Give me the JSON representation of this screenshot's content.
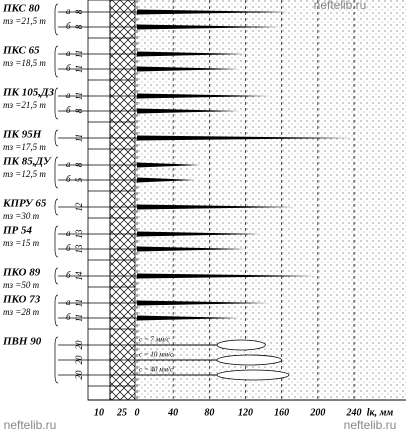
{
  "chart_data": {
    "type": "spike",
    "xlim": [
      0,
      240
    ],
    "xticks": [
      0,
      40,
      80,
      120,
      160,
      200,
      240
    ],
    "xlabel": "lк, мм",
    "left_columns": [
      10,
      25
    ],
    "watermark": [
      "neftelib.ru",
      "neftelib.ru"
    ],
    "groups": [
      {
        "name": "ПКС 80",
        "mass": "mз =21,5 т",
        "rows": [
          {
            "tag": "а",
            "label": "8",
            "value": 168
          },
          {
            "tag": "б",
            "label": "8",
            "value": 158
          }
        ]
      },
      {
        "name": "ПКС 65",
        "mass": "mз =18,5 т",
        "rows": [
          {
            "tag": "а",
            "label": "11",
            "value": 120
          },
          {
            "tag": "б",
            "label": "11",
            "value": 113
          }
        ]
      },
      {
        "name": "ПК 105,ДЗ",
        "mass": "mз =21,5 т",
        "rows": [
          {
            "tag": "а",
            "label": "11",
            "value": 147
          },
          {
            "tag": "б",
            "label": "8",
            "value": 113
          }
        ]
      },
      {
        "name": "ПК 95Н",
        "mass": "mз =17,5 т",
        "rows": [
          {
            "label": "11",
            "value": 238
          }
        ]
      },
      {
        "name": "ПК 85,ДУ",
        "mass": "mз =12,5 т",
        "rows": [
          {
            "tag": "а",
            "label": "8",
            "value": 70
          },
          {
            "tag": "б",
            "label": "5",
            "value": 64
          }
        ]
      },
      {
        "name": "КПРУ 65",
        "mass": "mз =30 т",
        "rows": [
          {
            "label": "12",
            "value": 175
          }
        ]
      },
      {
        "name": "ПР 54",
        "mass": "mз =15 т",
        "rows": [
          {
            "tag": "а",
            "label": "13",
            "value": 136
          },
          {
            "tag": "б",
            "label": "13",
            "value": 120
          }
        ]
      },
      {
        "name": "ПКО 89",
        "mass": "mз =50 т",
        "rows": [
          {
            "tag": "б",
            "label": "14",
            "value": 197
          }
        ]
      },
      {
        "name": "ПКО 73",
        "mass": "mз =28 т",
        "rows": [
          {
            "tag": "а",
            "label": "11",
            "value": 147
          },
          {
            "tag": "б",
            "label": "11",
            "value": 113
          }
        ]
      },
      {
        "name": "ПВН 90",
        "rows": [
          {
            "label": "20",
            "value": 142,
            "note": "c = 7 мм/с"
          },
          {
            "label": "20",
            "value": 160,
            "note": "c = 10 мм/с"
          },
          {
            "label": "20",
            "value": 168,
            "note": "c = 40 мм/с"
          }
        ]
      }
    ]
  }
}
